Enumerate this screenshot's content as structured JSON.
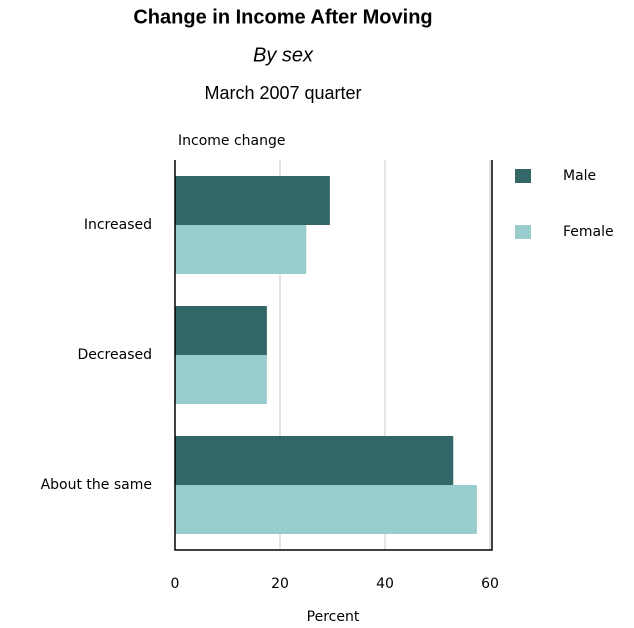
{
  "chart_data": {
    "type": "hbar",
    "title": "Change in Income After Moving",
    "subtitle": "By sex",
    "subtitle2": "March 2007 quarter",
    "y_label": "Income change",
    "x_label": "Percent",
    "categories": [
      "Increased",
      "Decreased",
      "About the same"
    ],
    "series": [
      {
        "name": "Male",
        "color": "#336666",
        "values": [
          29.5,
          17.5,
          53
        ]
      },
      {
        "name": "Female",
        "color": "#99cccc",
        "values": [
          25,
          17.5,
          57.5
        ]
      }
    ],
    "xlim": [
      0,
      60
    ],
    "xticks": [
      0,
      20,
      40,
      60
    ],
    "grid": true,
    "legend": "right"
  }
}
